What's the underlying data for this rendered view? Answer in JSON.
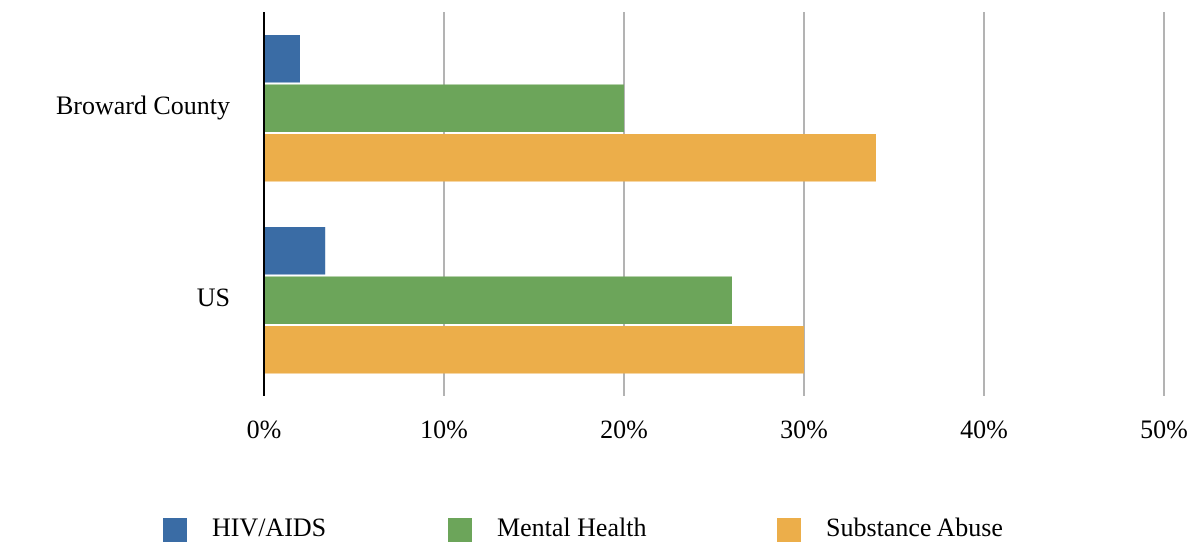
{
  "chart_data": {
    "type": "hbar",
    "categories": [
      "Broward County",
      "US"
    ],
    "series": [
      {
        "name": "HIV/AIDS",
        "color": "#3a6ca5",
        "values": [
          2,
          3.4
        ]
      },
      {
        "name": "Mental Health",
        "color": "#6ca55a",
        "values": [
          20,
          26
        ]
      },
      {
        "name": "Substance Abuse",
        "color": "#ecae4a",
        "values": [
          34,
          30
        ]
      }
    ],
    "xlim": [
      0,
      50
    ],
    "xticks": [
      {
        "value": 0,
        "label": "0%"
      },
      {
        "value": 10,
        "label": "10%"
      },
      {
        "value": 20,
        "label": "20%"
      },
      {
        "value": 30,
        "label": "30%"
      },
      {
        "value": 40,
        "label": "40%"
      },
      {
        "value": 50,
        "label": "50%"
      }
    ],
    "grid": true,
    "legend": "bottom"
  }
}
